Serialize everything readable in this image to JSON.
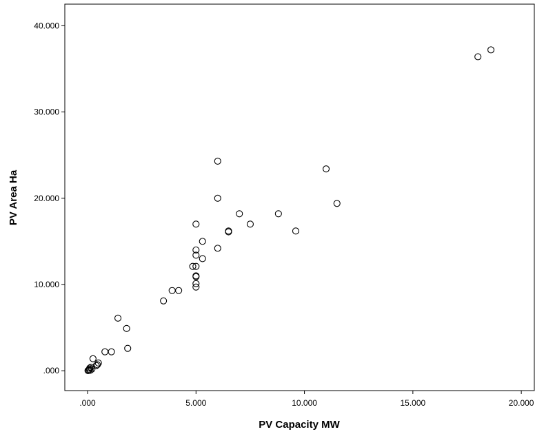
{
  "chart_data": {
    "type": "scatter",
    "xlabel": "PV Capacity MW",
    "ylabel": "PV Area Ha",
    "xlim": [
      -1.05,
      20.6
    ],
    "ylim": [
      -2.3,
      42.5
    ],
    "x_ticks": [
      0,
      5,
      10,
      15,
      20
    ],
    "x_tick_labels": [
      ".000",
      "5.000",
      "10.000",
      "15.000",
      "20.000"
    ],
    "y_ticks": [
      0,
      10,
      20,
      30,
      40
    ],
    "y_tick_labels": [
      ".000",
      "10.000",
      "20.000",
      "30.000",
      "40.000"
    ],
    "grid": false,
    "marker": "open-circle",
    "points": [
      {
        "x": 0.02,
        "y": 0.02
      },
      {
        "x": 0.05,
        "y": 0.08
      },
      {
        "x": 0.08,
        "y": 0.15
      },
      {
        "x": 0.1,
        "y": 0.3
      },
      {
        "x": 0.12,
        "y": 0.05
      },
      {
        "x": 0.15,
        "y": 0.4
      },
      {
        "x": 0.2,
        "y": 0.2
      },
      {
        "x": 0.25,
        "y": 1.4
      },
      {
        "x": 0.4,
        "y": 0.6
      },
      {
        "x": 0.45,
        "y": 0.7
      },
      {
        "x": 0.5,
        "y": 0.9
      },
      {
        "x": 0.8,
        "y": 2.2
      },
      {
        "x": 1.1,
        "y": 2.2
      },
      {
        "x": 1.4,
        "y": 6.1
      },
      {
        "x": 1.8,
        "y": 4.9
      },
      {
        "x": 1.85,
        "y": 2.6
      },
      {
        "x": 3.5,
        "y": 8.1
      },
      {
        "x": 3.9,
        "y": 9.3
      },
      {
        "x": 4.2,
        "y": 9.3
      },
      {
        "x": 4.85,
        "y": 12.1
      },
      {
        "x": 5.0,
        "y": 9.7
      },
      {
        "x": 5.0,
        "y": 10.1
      },
      {
        "x": 5.0,
        "y": 10.9
      },
      {
        "x": 5.0,
        "y": 11.0
      },
      {
        "x": 5.0,
        "y": 12.1
      },
      {
        "x": 5.0,
        "y": 13.4
      },
      {
        "x": 5.0,
        "y": 14.0
      },
      {
        "x": 5.0,
        "y": 17.0
      },
      {
        "x": 5.3,
        "y": 13.0
      },
      {
        "x": 5.3,
        "y": 15.0
      },
      {
        "x": 6.0,
        "y": 14.2
      },
      {
        "x": 6.0,
        "y": 20.0
      },
      {
        "x": 6.0,
        "y": 24.3
      },
      {
        "x": 6.5,
        "y": 16.1
      },
      {
        "x": 6.5,
        "y": 16.2
      },
      {
        "x": 7.0,
        "y": 18.2
      },
      {
        "x": 7.5,
        "y": 17.0
      },
      {
        "x": 8.8,
        "y": 18.2
      },
      {
        "x": 9.6,
        "y": 16.2
      },
      {
        "x": 11.0,
        "y": 23.4
      },
      {
        "x": 11.5,
        "y": 19.4
      },
      {
        "x": 18.0,
        "y": 36.4
      },
      {
        "x": 18.6,
        "y": 37.2
      }
    ]
  }
}
